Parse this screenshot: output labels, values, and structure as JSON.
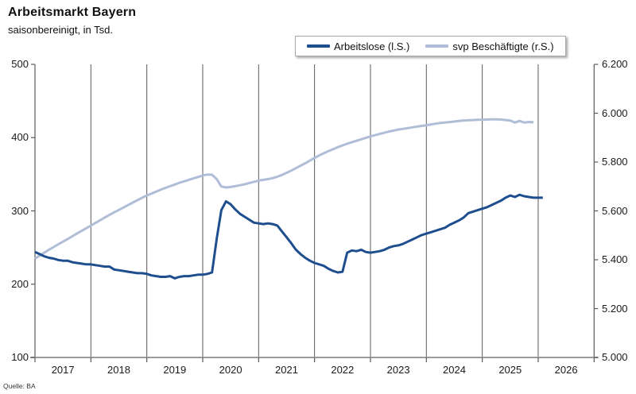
{
  "header": {
    "title": "Arbeitsmarkt Bayern",
    "subtitle": "saisonbereinigt, in Tsd."
  },
  "source": "Quelle: BA",
  "colors": {
    "unemployed_line": "#1F4E8F",
    "employed_line": "#AFBDD6",
    "gridline": "#5a5a5a",
    "bottom_axis": "#9c9c9c",
    "side_axis": "#5a5a5a"
  },
  "chart_data": {
    "type": "line",
    "title": "Arbeitsmarkt Bayern",
    "subtitle": "saisonbereinigt, in Tsd.",
    "legend_position": "top",
    "grid": "vertical-year-lines",
    "x_unit": "month",
    "x_start": "2017-01",
    "x_axis": {
      "years": [
        "2017",
        "2018",
        "2019",
        "2020",
        "2021",
        "2022",
        "2023",
        "2024",
        "2025",
        "2026"
      ]
    },
    "left_axis": {
      "range": [
        100,
        500
      ],
      "ticks": [
        {
          "v": 100,
          "label": "100"
        },
        {
          "v": 200,
          "label": "200"
        },
        {
          "v": 300,
          "label": "300"
        },
        {
          "v": 400,
          "label": "400"
        },
        {
          "v": 500,
          "label": "500"
        }
      ]
    },
    "right_axis": {
      "range": [
        5000,
        6200
      ],
      "ticks": [
        {
          "v": 5000,
          "label": "5.000"
        },
        {
          "v": 5200,
          "label": "5.200"
        },
        {
          "v": 5400,
          "label": "5.400"
        },
        {
          "v": 5600,
          "label": "5.600"
        },
        {
          "v": 5800,
          "label": "5.800"
        },
        {
          "v": 6000,
          "label": "6.000"
        },
        {
          "v": 6200,
          "label": "6.200"
        }
      ]
    },
    "series": [
      {
        "name": "Arbeitslose (l.S.)",
        "axis": "left",
        "color": "#1F4E8F",
        "start_month": 0,
        "values": [
          244,
          241,
          238,
          236,
          235,
          233,
          232,
          232,
          230,
          229,
          228,
          227,
          227,
          226,
          225,
          224,
          224,
          220,
          219,
          218,
          217,
          216,
          215,
          215,
          214,
          212,
          211,
          210,
          210,
          211,
          208,
          210,
          211,
          211,
          212,
          213,
          213,
          214,
          216,
          262,
          301,
          313,
          309,
          302,
          296,
          292,
          288,
          284,
          283,
          282,
          283,
          282,
          280,
          272,
          264,
          256,
          247,
          241,
          236,
          232,
          229,
          227,
          225,
          221,
          218,
          216,
          217,
          243,
          246,
          245,
          247,
          244,
          243,
          244,
          245,
          247,
          250,
          252,
          253,
          255,
          258,
          261,
          264,
          267,
          269,
          271,
          273,
          275,
          277,
          281,
          284,
          287,
          291,
          297,
          299,
          301,
          303,
          305,
          308,
          311,
          314,
          318,
          321,
          319,
          322,
          320,
          319,
          318,
          318,
          318
        ]
      },
      {
        "name": "svp Beschäftigte (r.S.)",
        "axis": "right",
        "color": "#AFBDD6",
        "start_month": 0,
        "values": [
          5405,
          5417,
          5429,
          5441,
          5452,
          5463,
          5474,
          5485,
          5496,
          5507,
          5518,
          5529,
          5540,
          5551,
          5562,
          5573,
          5584,
          5594,
          5604,
          5614,
          5624,
          5634,
          5644,
          5654,
          5663,
          5671,
          5679,
          5687,
          5694,
          5701,
          5708,
          5715,
          5721,
          5727,
          5733,
          5739,
          5745,
          5749,
          5748,
          5730,
          5700,
          5696,
          5698,
          5701,
          5705,
          5709,
          5714,
          5719,
          5724,
          5727,
          5730,
          5734,
          5740,
          5747,
          5756,
          5765,
          5775,
          5785,
          5795,
          5806,
          5817,
          5827,
          5836,
          5845,
          5853,
          5861,
          5868,
          5875,
          5881,
          5887,
          5893,
          5899,
          5905,
          5910,
          5915,
          5920,
          5925,
          5929,
          5933,
          5936,
          5939,
          5942,
          5945,
          5948,
          5951,
          5954,
          5957,
          5960,
          5962,
          5964,
          5966,
          5968,
          5970,
          5971,
          5972,
          5973,
          5973,
          5974,
          5975,
          5975,
          5974,
          5972,
          5970,
          5962,
          5968,
          5962,
          5964,
          5963
        ]
      }
    ]
  }
}
